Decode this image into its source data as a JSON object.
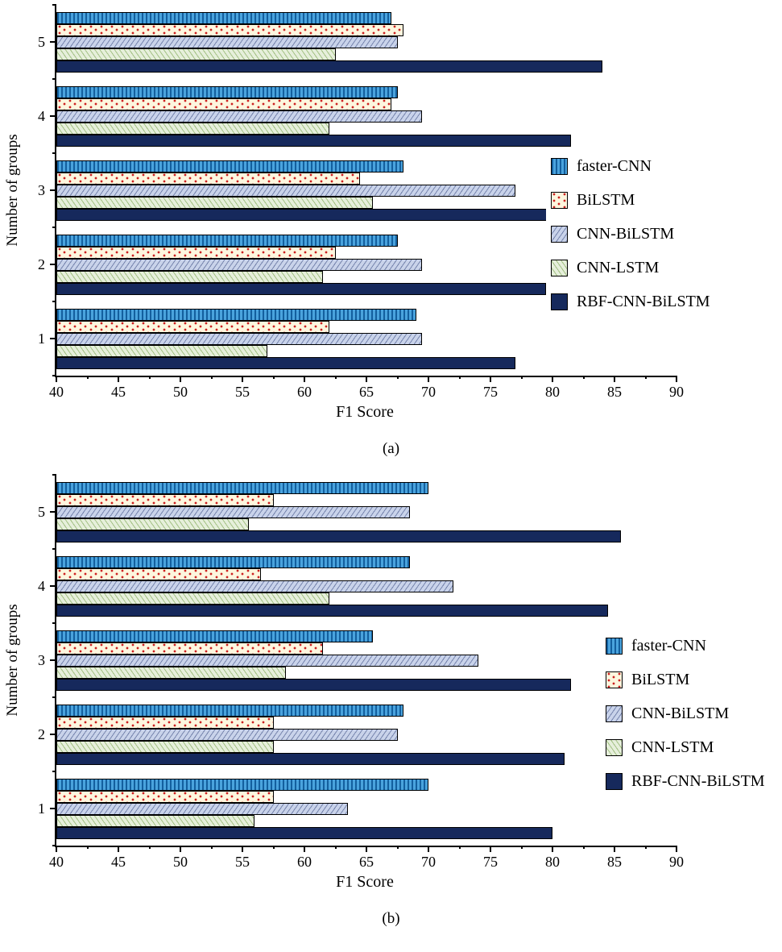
{
  "figure": {
    "background": "#ffffff"
  },
  "chart_data": [
    {
      "type": "bar",
      "orientation": "horizontal",
      "panel": "(a)",
      "title": "",
      "xlabel": "F1 Score",
      "ylabel": "Number of groups",
      "xlim": [
        40,
        90
      ],
      "x_ticks": [
        40,
        45,
        50,
        55,
        60,
        65,
        70,
        75,
        80,
        85,
        90
      ],
      "x_minor_tick_step": 2.5,
      "categories": [
        "1",
        "2",
        "3",
        "4",
        "5"
      ],
      "grid": false,
      "legend_position": "inside-right",
      "series": [
        {
          "name": "faster-CNN",
          "fill": "#4aa3dd",
          "pattern": "vertical-stripes",
          "pattern_color": "#135f9e",
          "values": [
            69,
            67.5,
            68,
            67.5,
            67
          ]
        },
        {
          "name": "BiLSTM",
          "fill": "#fdf6de",
          "pattern": "dots",
          "pattern_color": "#cc2020",
          "values": [
            62,
            62.5,
            64.5,
            67,
            68
          ]
        },
        {
          "name": "CNN-BiLSTM",
          "fill": "#c9d3ea",
          "pattern": "diagonal-hatch",
          "pattern_color": "#7684ad",
          "values": [
            69.5,
            69.5,
            77,
            69.5,
            67.5
          ]
        },
        {
          "name": "CNN-LSTM",
          "fill": "#e6efdb",
          "pattern": "diagonal-hatch",
          "pattern_color": "#a3c184",
          "values": [
            57,
            61.5,
            65.5,
            62,
            62.5
          ]
        },
        {
          "name": "RBF-CNN-BiLSTM",
          "fill": "#16295c",
          "pattern": "solid",
          "pattern_color": "#16295c",
          "values": [
            77,
            79.5,
            80.5,
            81.5,
            84
          ]
        }
      ]
    },
    {
      "type": "bar",
      "orientation": "horizontal",
      "panel": "(b)",
      "title": "",
      "xlabel": "F1 Score",
      "ylabel": "Number of groups",
      "xlim": [
        40,
        90
      ],
      "x_ticks": [
        40,
        45,
        50,
        55,
        60,
        65,
        70,
        75,
        80,
        85,
        90
      ],
      "x_minor_tick_step": 2.5,
      "categories": [
        "1",
        "2",
        "3",
        "4",
        "5"
      ],
      "grid": false,
      "legend_position": "inside-right",
      "series": [
        {
          "name": "faster-CNN",
          "fill": "#4aa3dd",
          "pattern": "vertical-stripes",
          "pattern_color": "#135f9e",
          "values": [
            70,
            68,
            65.5,
            68.5,
            70
          ]
        },
        {
          "name": "BiLSTM",
          "fill": "#fdf6de",
          "pattern": "dots",
          "pattern_color": "#cc2020",
          "values": [
            57.5,
            57.5,
            61.5,
            56.5,
            57.5
          ]
        },
        {
          "name": "CNN-BiLSTM",
          "fill": "#c9d3ea",
          "pattern": "diagonal-hatch",
          "pattern_color": "#7684ad",
          "values": [
            63.5,
            67.5,
            74,
            72,
            68.5
          ]
        },
        {
          "name": "CNN-LSTM",
          "fill": "#e6efdb",
          "pattern": "diagonal-hatch",
          "pattern_color": "#a3c184",
          "values": [
            56,
            57.5,
            58.5,
            62,
            55.5
          ]
        },
        {
          "name": "RBF-CNN-BiLSTM",
          "fill": "#16295c",
          "pattern": "solid",
          "pattern_color": "#16295c",
          "values": [
            80,
            81,
            81.5,
            84.5,
            85.5
          ]
        }
      ]
    }
  ]
}
